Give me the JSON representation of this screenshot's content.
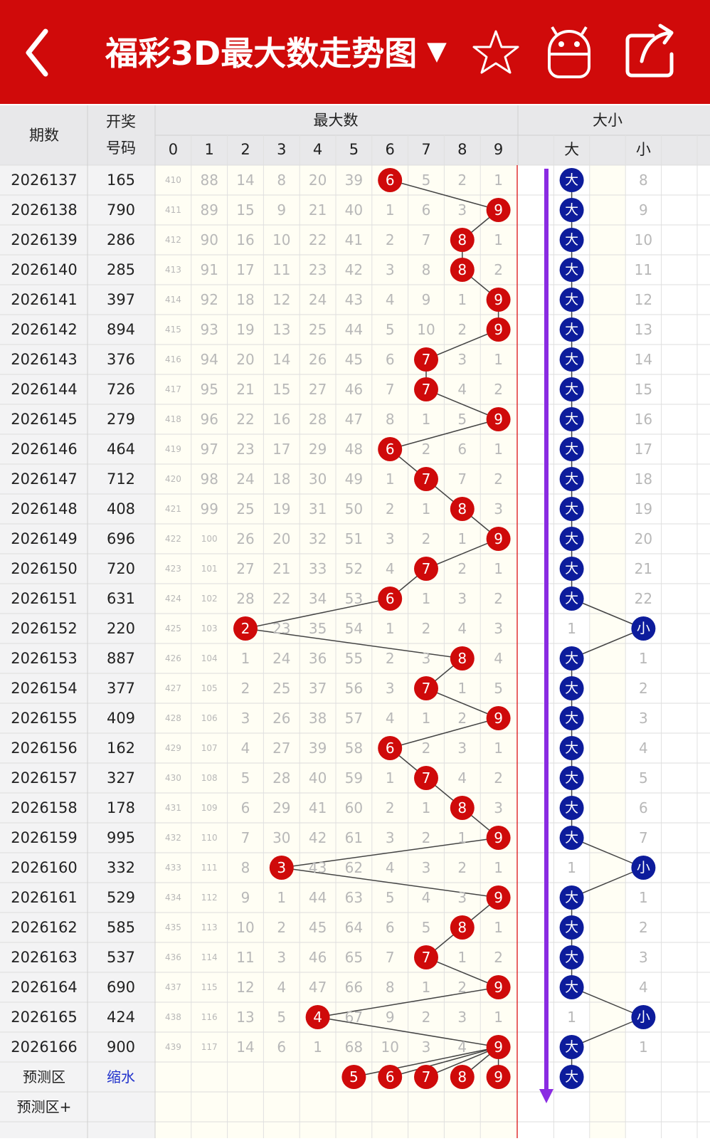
{
  "header": {
    "title": "福彩3D最大数走势图",
    "dropdown": "▼"
  },
  "table": {
    "columns": {
      "issue": "期数",
      "number": [
        "开奖",
        "号码"
      ],
      "max_group": "最大数",
      "digits": [
        "0",
        "1",
        "2",
        "3",
        "4",
        "5",
        "6",
        "7",
        "8",
        "9"
      ],
      "size_group": "大小",
      "big": "大",
      "small": "小"
    },
    "rows": [
      {
        "issue": "2026137",
        "number": "165",
        "cells": [
          "410",
          "88",
          "14",
          "8",
          "20",
          "39",
          "6",
          "5",
          "2",
          "1"
        ],
        "size": [
          "大",
          "8"
        ]
      },
      {
        "issue": "2026138",
        "number": "790",
        "cells": [
          "411",
          "89",
          "15",
          "9",
          "21",
          "40",
          "1",
          "6",
          "3",
          "9"
        ],
        "size": [
          "大",
          "9"
        ]
      },
      {
        "issue": "2026139",
        "number": "286",
        "cells": [
          "412",
          "90",
          "16",
          "10",
          "22",
          "41",
          "2",
          "7",
          "8",
          "1"
        ],
        "size": [
          "大",
          "10"
        ]
      },
      {
        "issue": "2026140",
        "number": "285",
        "cells": [
          "413",
          "91",
          "17",
          "11",
          "23",
          "42",
          "3",
          "8",
          "8",
          "2"
        ],
        "size": [
          "大",
          "11"
        ]
      },
      {
        "issue": "2026141",
        "number": "397",
        "cells": [
          "414",
          "92",
          "18",
          "12",
          "24",
          "43",
          "4",
          "9",
          "1",
          "9"
        ],
        "size": [
          "大",
          "12"
        ]
      },
      {
        "issue": "2026142",
        "number": "894",
        "cells": [
          "415",
          "93",
          "19",
          "13",
          "25",
          "44",
          "5",
          "10",
          "2",
          "9"
        ],
        "size": [
          "大",
          "13"
        ]
      },
      {
        "issue": "2026143",
        "number": "376",
        "cells": [
          "416",
          "94",
          "20",
          "14",
          "26",
          "45",
          "6",
          "7",
          "3",
          "1"
        ],
        "size": [
          "大",
          "14"
        ]
      },
      {
        "issue": "2026144",
        "number": "726",
        "cells": [
          "417",
          "95",
          "21",
          "15",
          "27",
          "46",
          "7",
          "7",
          "4",
          "2"
        ],
        "size": [
          "大",
          "15"
        ]
      },
      {
        "issue": "2026145",
        "number": "279",
        "cells": [
          "418",
          "96",
          "22",
          "16",
          "28",
          "47",
          "8",
          "1",
          "5",
          "9"
        ],
        "size": [
          "大",
          "16"
        ]
      },
      {
        "issue": "2026146",
        "number": "464",
        "cells": [
          "419",
          "97",
          "23",
          "17",
          "29",
          "48",
          "6",
          "2",
          "6",
          "1"
        ],
        "size": [
          "大",
          "17"
        ]
      },
      {
        "issue": "2026147",
        "number": "712",
        "cells": [
          "420",
          "98",
          "24",
          "18",
          "30",
          "49",
          "1",
          "7",
          "7",
          "2"
        ],
        "size": [
          "大",
          "18"
        ]
      },
      {
        "issue": "2026148",
        "number": "408",
        "cells": [
          "421",
          "99",
          "25",
          "19",
          "31",
          "50",
          "2",
          "1",
          "8",
          "3"
        ],
        "size": [
          "大",
          "19"
        ]
      },
      {
        "issue": "2026149",
        "number": "696",
        "cells": [
          "422",
          "100",
          "26",
          "20",
          "32",
          "51",
          "3",
          "2",
          "1",
          "9"
        ],
        "size": [
          "大",
          "20"
        ]
      },
      {
        "issue": "2026150",
        "number": "720",
        "cells": [
          "423",
          "101",
          "27",
          "21",
          "33",
          "52",
          "4",
          "7",
          "2",
          "1"
        ],
        "size": [
          "大",
          "21"
        ]
      },
      {
        "issue": "2026151",
        "number": "631",
        "cells": [
          "424",
          "102",
          "28",
          "22",
          "34",
          "53",
          "6",
          "1",
          "3",
          "2"
        ],
        "size": [
          "大",
          "22"
        ]
      },
      {
        "issue": "2026152",
        "number": "220",
        "cells": [
          "425",
          "103",
          "2",
          "23",
          "35",
          "54",
          "1",
          "2",
          "4",
          "3"
        ],
        "size": [
          "1",
          "小"
        ]
      },
      {
        "issue": "2026153",
        "number": "887",
        "cells": [
          "426",
          "104",
          "1",
          "24",
          "36",
          "55",
          "2",
          "3",
          "8",
          "4"
        ],
        "size": [
          "大",
          "1"
        ]
      },
      {
        "issue": "2026154",
        "number": "377",
        "cells": [
          "427",
          "105",
          "2",
          "25",
          "37",
          "56",
          "3",
          "7",
          "1",
          "5"
        ],
        "size": [
          "大",
          "2"
        ]
      },
      {
        "issue": "2026155",
        "number": "409",
        "cells": [
          "428",
          "106",
          "3",
          "26",
          "38",
          "57",
          "4",
          "1",
          "2",
          "9"
        ],
        "size": [
          "大",
          "3"
        ]
      },
      {
        "issue": "2026156",
        "number": "162",
        "cells": [
          "429",
          "107",
          "4",
          "27",
          "39",
          "58",
          "6",
          "2",
          "3",
          "1"
        ],
        "size": [
          "大",
          "4"
        ]
      },
      {
        "issue": "2026157",
        "number": "327",
        "cells": [
          "430",
          "108",
          "5",
          "28",
          "40",
          "59",
          "1",
          "7",
          "4",
          "2"
        ],
        "size": [
          "大",
          "5"
        ]
      },
      {
        "issue": "2026158",
        "number": "178",
        "cells": [
          "431",
          "109",
          "6",
          "29",
          "41",
          "60",
          "2",
          "1",
          "8",
          "3"
        ],
        "size": [
          "大",
          "6"
        ]
      },
      {
        "issue": "2026159",
        "number": "995",
        "cells": [
          "432",
          "110",
          "7",
          "30",
          "42",
          "61",
          "3",
          "2",
          "1",
          "9"
        ],
        "size": [
          "大",
          "7"
        ]
      },
      {
        "issue": "2026160",
        "number": "332",
        "cells": [
          "433",
          "111",
          "8",
          "3",
          "43",
          "62",
          "4",
          "3",
          "2",
          "1"
        ],
        "size": [
          "1",
          "小"
        ]
      },
      {
        "issue": "2026161",
        "number": "529",
        "cells": [
          "434",
          "112",
          "9",
          "1",
          "44",
          "63",
          "5",
          "4",
          "3",
          "9"
        ],
        "size": [
          "大",
          "1"
        ]
      },
      {
        "issue": "2026162",
        "number": "585",
        "cells": [
          "435",
          "113",
          "10",
          "2",
          "45",
          "64",
          "6",
          "5",
          "8",
          "1"
        ],
        "size": [
          "大",
          "2"
        ]
      },
      {
        "issue": "2026163",
        "number": "537",
        "cells": [
          "436",
          "114",
          "11",
          "3",
          "46",
          "65",
          "7",
          "7",
          "1",
          "2"
        ],
        "size": [
          "大",
          "3"
        ]
      },
      {
        "issue": "2026164",
        "number": "690",
        "cells": [
          "437",
          "115",
          "12",
          "4",
          "47",
          "66",
          "8",
          "1",
          "2",
          "9"
        ],
        "size": [
          "大",
          "4"
        ]
      },
      {
        "issue": "2026165",
        "number": "424",
        "cells": [
          "438",
          "116",
          "13",
          "5",
          "4",
          "67",
          "9",
          "2",
          "3",
          "1"
        ],
        "size": [
          "1",
          "小"
        ]
      },
      {
        "issue": "2026166",
        "number": "900",
        "cells": [
          "439",
          "117",
          "14",
          "6",
          "1",
          "68",
          "10",
          "3",
          "4",
          "9"
        ],
        "size": [
          "大",
          "1"
        ]
      }
    ],
    "forecast": {
      "label": "预测区",
      "link": "缩水",
      "picks": [
        "5",
        "6",
        "7",
        "8",
        "9"
      ],
      "size": "大"
    },
    "forecast_plus": "预测区+"
  }
}
